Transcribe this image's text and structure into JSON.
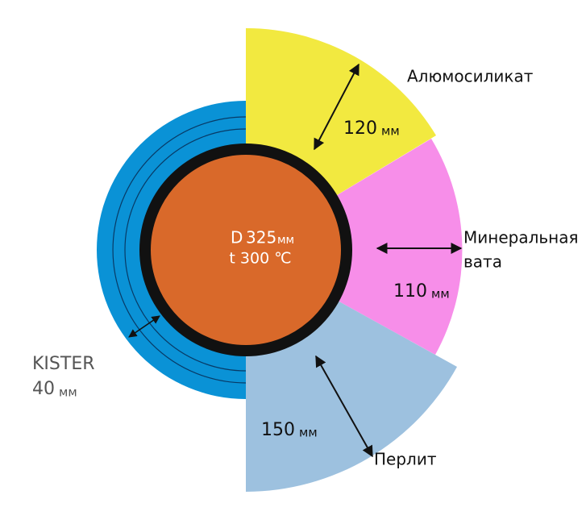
{
  "center": {
    "d_label": "D",
    "diameter": "325",
    "unit": "мм",
    "temperature": "t 300 ℃"
  },
  "layers": [
    {
      "name": "Алюмосиликат",
      "thickness": "120",
      "unit": "мм"
    },
    {
      "name_line1": "Минеральная",
      "name_line2": "вата",
      "thickness": "110",
      "unit": "мм"
    },
    {
      "name": "Перлит",
      "thickness": "150",
      "unit": "мм"
    },
    {
      "name": "KISTER",
      "thickness": "40",
      "unit": "мм"
    }
  ]
}
